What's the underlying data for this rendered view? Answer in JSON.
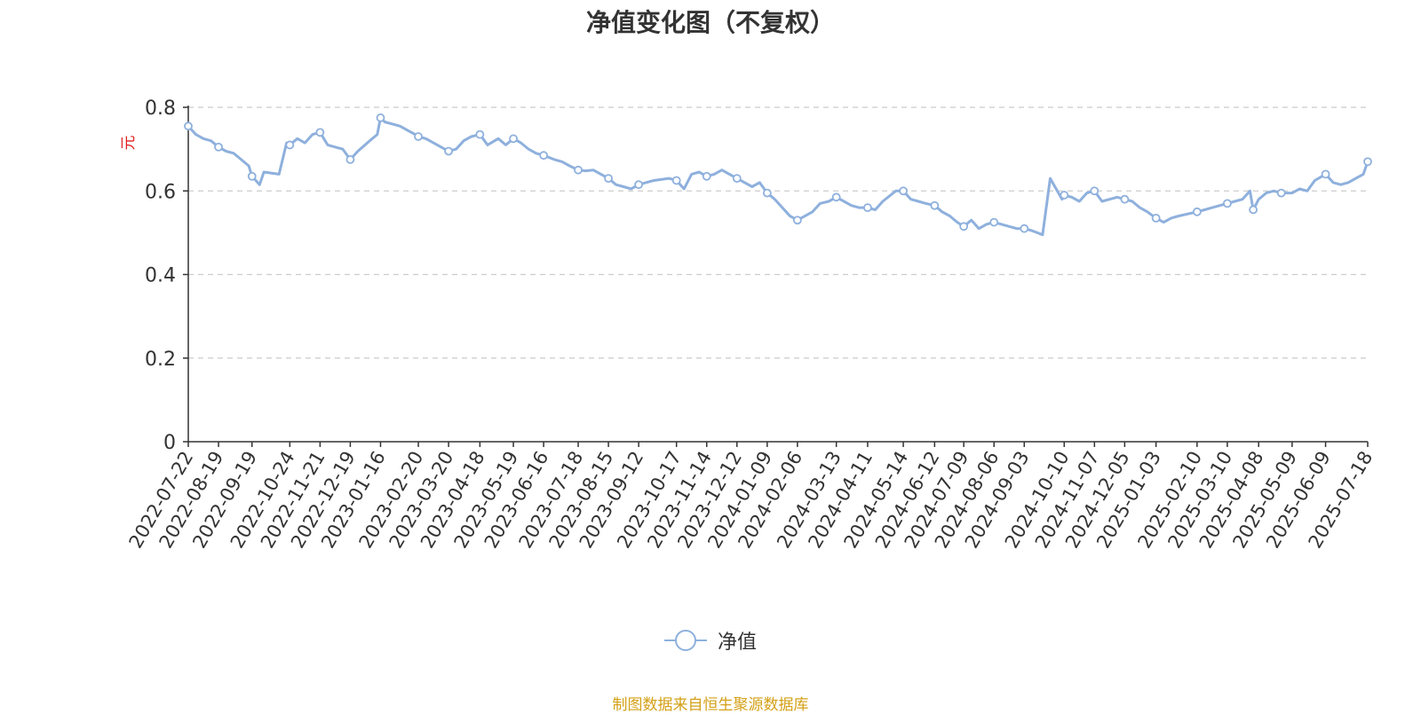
{
  "title": "净值变化图（不复权）",
  "source_note": "制图数据来自恒生聚源数据库",
  "colors": {
    "line": "#8eb0dd",
    "axis": "#333333",
    "grid": "#cccccc",
    "ylabel": "#e02020",
    "source": "#d4a017"
  },
  "chart_data": {
    "type": "line",
    "ylabel": "元",
    "ylim": [
      0,
      0.8
    ],
    "yticks": [
      "0",
      "0.2",
      "0.4",
      "0.6",
      "0.8"
    ],
    "y_tick_values": [
      0,
      0.2,
      0.4,
      0.6,
      0.8
    ],
    "grid": "horizontal dashed",
    "legend_position": "bottom-center",
    "x_tick_labels": [
      "2022-07-22",
      "2022-08-19",
      "2022-09-19",
      "2022-10-24",
      "2022-11-21",
      "2022-12-19",
      "2023-01-16",
      "2023-02-20",
      "2023-03-20",
      "2023-04-18",
      "2023-05-19",
      "2023-06-16",
      "2023-07-18",
      "2023-08-15",
      "2023-09-12",
      "2023-10-17",
      "2023-11-14",
      "2023-12-12",
      "2024-01-09",
      "2024-02-06",
      "2024-03-13",
      "2024-04-11",
      "2024-05-14",
      "2024-06-12",
      "2024-07-09",
      "2024-08-06",
      "2024-09-03",
      "2024-10-10",
      "2024-11-07",
      "2024-12-05",
      "2025-01-03",
      "2025-02-10",
      "2025-03-10",
      "2025-04-08",
      "2025-05-09",
      "2025-06-09",
      "2025-07-18"
    ],
    "series": [
      {
        "name": "净值",
        "x": [
          "2022-07-22",
          "2022-07-29",
          "2022-08-05",
          "2022-08-12",
          "2022-08-19",
          "2022-08-26",
          "2022-09-02",
          "2022-09-09",
          "2022-09-16",
          "2022-09-19",
          "2022-09-26",
          "2022-09-30",
          "2022-10-14",
          "2022-10-21",
          "2022-10-24",
          "2022-10-31",
          "2022-11-07",
          "2022-11-14",
          "2022-11-21",
          "2022-11-28",
          "2022-12-05",
          "2022-12-12",
          "2022-12-19",
          "2022-12-26",
          "2023-01-06",
          "2023-01-13",
          "2023-01-16",
          "2023-01-20",
          "2023-02-03",
          "2023-02-10",
          "2023-02-17",
          "2023-02-20",
          "2023-02-27",
          "2023-03-06",
          "2023-03-13",
          "2023-03-20",
          "2023-03-27",
          "2023-04-03",
          "2023-04-10",
          "2023-04-18",
          "2023-04-25",
          "2023-05-05",
          "2023-05-12",
          "2023-05-19",
          "2023-05-26",
          "2023-06-02",
          "2023-06-09",
          "2023-06-16",
          "2023-06-26",
          "2023-07-03",
          "2023-07-10",
          "2023-07-18",
          "2023-07-25",
          "2023-08-01",
          "2023-08-08",
          "2023-08-15",
          "2023-08-22",
          "2023-08-29",
          "2023-09-05",
          "2023-09-12",
          "2023-09-19",
          "2023-09-26",
          "2023-10-10",
          "2023-10-17",
          "2023-10-24",
          "2023-10-31",
          "2023-11-07",
          "2023-11-14",
          "2023-11-21",
          "2023-11-28",
          "2023-12-05",
          "2023-12-12",
          "2023-12-19",
          "2023-12-26",
          "2024-01-02",
          "2024-01-09",
          "2024-01-16",
          "2024-01-23",
          "2024-01-30",
          "2024-02-06",
          "2024-02-20",
          "2024-02-27",
          "2024-03-06",
          "2024-03-13",
          "2024-03-20",
          "2024-03-27",
          "2024-04-03",
          "2024-04-11",
          "2024-04-18",
          "2024-04-25",
          "2024-05-07",
          "2024-05-14",
          "2024-05-21",
          "2024-05-28",
          "2024-06-04",
          "2024-06-12",
          "2024-06-19",
          "2024-06-26",
          "2024-07-03",
          "2024-07-09",
          "2024-07-16",
          "2024-07-23",
          "2024-07-30",
          "2024-08-06",
          "2024-08-13",
          "2024-08-20",
          "2024-08-27",
          "2024-09-03",
          "2024-09-10",
          "2024-09-20",
          "2024-09-27",
          "2024-10-08",
          "2024-10-10",
          "2024-10-17",
          "2024-10-24",
          "2024-10-31",
          "2024-11-07",
          "2024-11-14",
          "2024-11-21",
          "2024-11-28",
          "2024-12-05",
          "2024-12-12",
          "2024-12-19",
          "2024-12-26",
          "2025-01-03",
          "2025-01-10",
          "2025-01-17",
          "2025-01-24",
          "2025-02-10",
          "2025-02-17",
          "2025-02-24",
          "2025-03-03",
          "2025-03-10",
          "2025-03-17",
          "2025-03-24",
          "2025-03-31",
          "2025-04-03",
          "2025-04-08",
          "2025-04-15",
          "2025-04-22",
          "2025-04-29",
          "2025-05-09",
          "2025-05-16",
          "2025-05-23",
          "2025-05-30",
          "2025-06-09",
          "2025-06-16",
          "2025-06-23",
          "2025-06-30",
          "2025-07-07",
          "2025-07-14",
          "2025-07-18"
        ],
        "values": [
          0.755,
          0.735,
          0.725,
          0.72,
          0.705,
          0.695,
          0.69,
          0.675,
          0.66,
          0.635,
          0.615,
          0.645,
          0.64,
          0.715,
          0.71,
          0.725,
          0.715,
          0.735,
          0.74,
          0.71,
          0.705,
          0.7,
          0.675,
          0.695,
          0.72,
          0.735,
          0.775,
          0.765,
          0.755,
          0.745,
          0.735,
          0.73,
          0.725,
          0.715,
          0.705,
          0.695,
          0.7,
          0.72,
          0.73,
          0.735,
          0.71,
          0.725,
          0.71,
          0.725,
          0.715,
          0.7,
          0.69,
          0.685,
          0.675,
          0.67,
          0.66,
          0.65,
          0.648,
          0.65,
          0.64,
          0.63,
          0.615,
          0.61,
          0.605,
          0.615,
          0.62,
          0.625,
          0.63,
          0.625,
          0.605,
          0.64,
          0.645,
          0.635,
          0.64,
          0.65,
          0.64,
          0.63,
          0.62,
          0.61,
          0.62,
          0.595,
          0.58,
          0.56,
          0.54,
          0.53,
          0.55,
          0.57,
          0.575,
          0.585,
          0.575,
          0.565,
          0.56,
          0.56,
          0.555,
          0.575,
          0.6,
          0.6,
          0.58,
          0.575,
          0.57,
          0.565,
          0.55,
          0.54,
          0.525,
          0.515,
          0.53,
          0.51,
          0.52,
          0.525,
          0.52,
          0.515,
          0.51,
          0.51,
          0.505,
          0.495,
          0.63,
          0.58,
          0.59,
          0.585,
          0.575,
          0.595,
          0.6,
          0.575,
          0.58,
          0.585,
          0.58,
          0.575,
          0.56,
          0.55,
          0.535,
          0.525,
          0.535,
          0.54,
          0.55,
          0.555,
          0.56,
          0.565,
          0.57,
          0.575,
          0.58,
          0.6,
          0.555,
          0.58,
          0.595,
          0.6,
          0.595,
          0.595,
          0.605,
          0.6,
          0.625,
          0.64,
          0.62,
          0.615,
          0.62,
          0.63,
          0.64,
          0.67
        ]
      }
    ],
    "marker_indices": [
      0,
      4,
      9,
      14,
      18,
      22,
      26,
      31,
      35,
      39,
      43,
      47,
      51,
      55,
      59,
      63,
      67,
      71,
      75,
      79,
      83,
      87,
      91,
      95,
      99,
      103,
      107,
      112,
      116,
      120,
      124,
      128,
      132,
      136,
      140,
      145,
      151
    ]
  }
}
